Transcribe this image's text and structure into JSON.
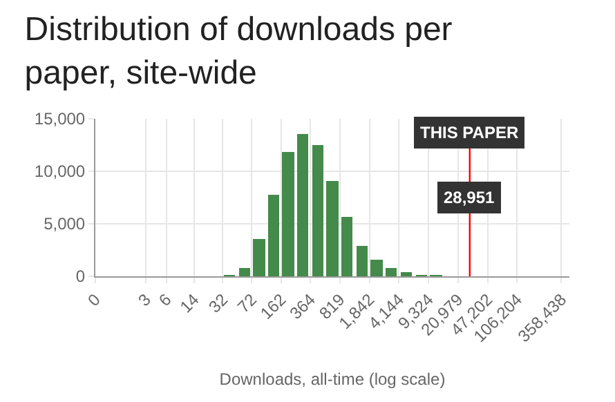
{
  "chart_data": {
    "type": "histogram",
    "title": "Distribution of downloads per paper, site-wide",
    "xlabel": "Downloads, all-time (log scale)",
    "log": "x",
    "color": "#448a4b",
    "bins": [
      32,
      48,
      72,
      108,
      162,
      243,
      364,
      546,
      819,
      1228,
      1842,
      2763,
      4144,
      6216,
      9324,
      13986
    ],
    "values": [
      100,
      800,
      3500,
      7700,
      11900,
      13600,
      12500,
      9100,
      5600,
      2900,
      1600,
      800,
      400,
      100,
      100
    ],
    "xlim": [
      0,
      446000
    ],
    "xticks": [
      {
        "value": 0,
        "label": "0"
      },
      {
        "value": 3,
        "label": "3"
      },
      {
        "value": 6,
        "label": "6"
      },
      {
        "value": 14,
        "label": "14"
      },
      {
        "value": 32,
        "label": "32"
      },
      {
        "value": 72,
        "label": "72"
      },
      {
        "value": 162,
        "label": "162"
      },
      {
        "value": 364,
        "label": "364"
      },
      {
        "value": 819,
        "label": "819"
      },
      {
        "value": 1842,
        "label": "1,842"
      },
      {
        "value": 4144,
        "label": "4,144"
      },
      {
        "value": 9324,
        "label": "9,324"
      },
      {
        "value": 20979,
        "label": "20,979"
      },
      {
        "value": 47202,
        "label": "47,202"
      },
      {
        "value": 106204,
        "label": "106,204"
      },
      {
        "value": 358438,
        "label": "358,438"
      }
    ],
    "ylim": [
      0,
      15000
    ],
    "yticks": [
      {
        "value": 0,
        "label": "0"
      },
      {
        "value": 5000,
        "label": "5,000"
      },
      {
        "value": 10000,
        "label": "10,000"
      },
      {
        "value": 15000,
        "label": "15,000"
      }
    ],
    "grid": true,
    "ref_lines": [
      {
        "axis": "x",
        "value": 28951,
        "label": "28,951",
        "color": "#ff0000"
      }
    ],
    "annotations": [
      {
        "text": "THIS PAPER",
        "x": 28951,
        "y": 13700
      }
    ]
  }
}
